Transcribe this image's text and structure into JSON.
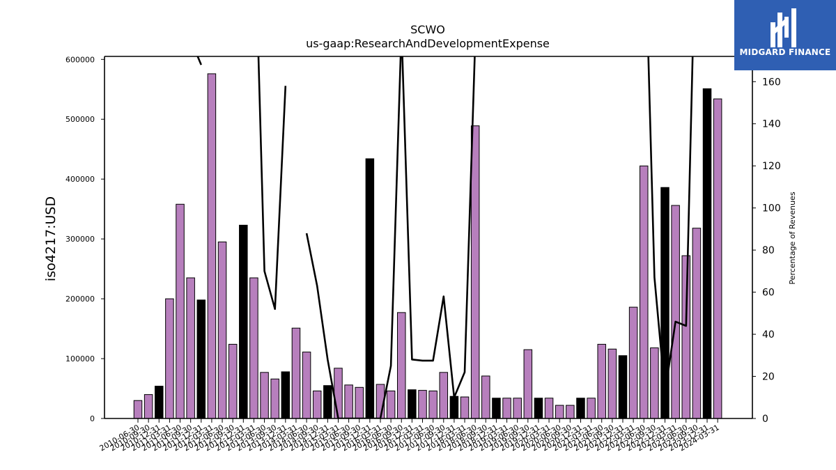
{
  "brand": {
    "logo_text": "MIDGARD FINANCE",
    "logo_color": "#2f5fb3"
  },
  "chart_data": {
    "type": "bar",
    "title": "SCWO",
    "subtitle": "us-gaap:ResearchAndDevelopmentExpense",
    "ylabel": "iso4217:USD",
    "y2label": "Percentage of Revenues",
    "ylim": [
      0,
      605000
    ],
    "y2lim": [
      0,
      172
    ],
    "yticks": [
      "0",
      "100000",
      "200000",
      "300000",
      "400000",
      "500000",
      "600000"
    ],
    "y2ticks": [
      "0",
      "20",
      "40",
      "60",
      "80",
      "100",
      "120",
      "140",
      "160"
    ],
    "colors": {
      "quarter": "#b77fbd",
      "annual": "#000000",
      "line": "#000000"
    },
    "categories": [
      "2010-06-30",
      "2010-09-30",
      "2010-12-31",
      "2011-03-31",
      "2011-06-30",
      "2011-09-30",
      "2011-12-31",
      "2012-03-31",
      "2012-06-30",
      "2012-09-30",
      "2012-12-31",
      "2013-03-31",
      "2013-06-30",
      "2013-09-30",
      "2013-12-31",
      "2014-03-31",
      "2014-06-30",
      "2014-09-30",
      "2014-12-31",
      "2015-03-31",
      "2015-06-30",
      "2015-09-30",
      "2015-12-31",
      "2016-03-31",
      "2016-06-30",
      "2016-09-30",
      "2016-12-31",
      "2017-03-31",
      "2017-06-30",
      "2017-09-30",
      "2017-12-31",
      "2018-03-31",
      "2018-06-30",
      "2018-09-30",
      "2018-12-31",
      "2019-03-31",
      "2019-06-30",
      "2019-09-30",
      "2019-12-31",
      "2020-03-31",
      "2020-06-30",
      "2020-09-30",
      "2020-12-31",
      "2021-03-31",
      "2021-06-30",
      "2021-09-30",
      "2021-12-31",
      "2022-03-31",
      "2022-06-30",
      "2022-09-30",
      "2022-12-31",
      "2023-03-31",
      "2023-06-30",
      "2023-09-30",
      "2023-12-31",
      "2024-03-31"
    ],
    "series": [
      {
        "values": [
          30000,
          40000,
          54000,
          200000,
          358000,
          235000,
          198000,
          576000,
          295000,
          124000,
          323000,
          235000,
          77000,
          66000,
          78000,
          151000,
          111000,
          46000,
          55000,
          84000,
          56000,
          52000,
          434000,
          57000,
          46000,
          177000,
          48000,
          47000,
          46000,
          77000,
          37000,
          36000,
          489000,
          71000,
          34000,
          34000,
          34000,
          115000,
          34000,
          34000,
          22000,
          22000,
          34000,
          34000,
          124000,
          116000,
          105000,
          186000,
          422000,
          118000,
          386000,
          356000,
          272000,
          318000,
          551000,
          534000
        ],
        "annual": [
          false,
          false,
          true,
          false,
          false,
          false,
          true,
          false,
          false,
          false,
          true,
          false,
          false,
          false,
          true,
          false,
          false,
          false,
          true,
          false,
          false,
          false,
          true,
          false,
          false,
          false,
          true,
          false,
          false,
          false,
          true,
          false,
          false,
          false,
          true,
          false,
          false,
          false,
          true,
          false,
          false,
          false,
          true,
          false,
          false,
          false,
          true,
          false,
          false,
          false,
          true,
          false,
          false,
          false,
          true,
          false
        ]
      },
      {
        "values": [
          null,
          null,
          null,
          null,
          null,
          180,
          168,
          null,
          null,
          null,
          null,
          250,
          70,
          52,
          158,
          null,
          88,
          63,
          28,
          0,
          0,
          0,
          0,
          0,
          25,
          185,
          28,
          27.5,
          27.5,
          58,
          10,
          22,
          180,
          null,
          null,
          null,
          null,
          null,
          null,
          null,
          null,
          null,
          null,
          null,
          null,
          null,
          null,
          null,
          250,
          67,
          12,
          46,
          44,
          250,
          180,
          250
        ]
      }
    ]
  }
}
